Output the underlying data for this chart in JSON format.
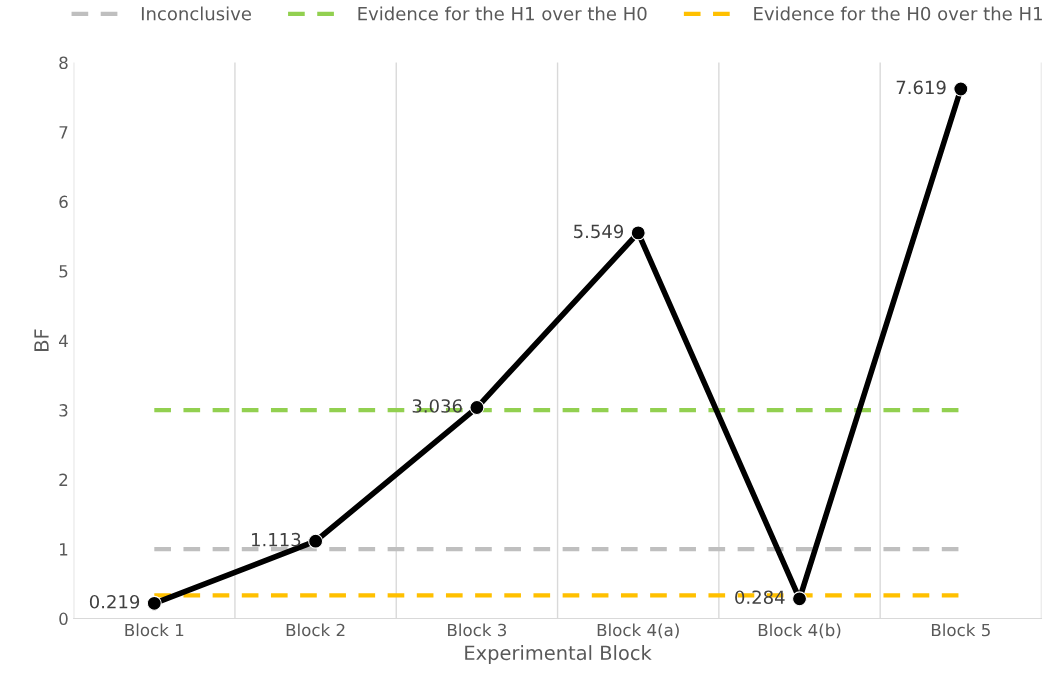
{
  "chart_data": {
    "type": "line",
    "xlabel": "Experimental Block",
    "ylabel": "BF",
    "categories": [
      "Block 1",
      "Block 2",
      "Block 3",
      "Block 4(a)",
      "Block 4(b)",
      "Block 5"
    ],
    "series": [
      {
        "color": "#000000",
        "values": [
          0.219,
          1.113,
          3.036,
          5.549,
          0.284,
          7.619
        ]
      }
    ],
    "marker": "circle",
    "line_style": "solid",
    "data_labels": true,
    "ylim": [
      0,
      8
    ],
    "yticks": [
      0,
      1,
      2,
      3,
      4,
      5,
      6,
      7,
      8
    ],
    "grid": "x",
    "legend": "top",
    "ref_lines": [
      {
        "axis": "y",
        "value": 1,
        "label": "Inconclusive",
        "color": "#bfbfbf",
        "line_style": "dashed"
      },
      {
        "axis": "y",
        "value": 3,
        "label": "Evidence for the H1 over the H0",
        "color": "#92d050",
        "line_style": "dashed"
      },
      {
        "axis": "y",
        "value": 0.333,
        "label": "Evidence for the H0 over the H1",
        "color": "#ffc000",
        "line_style": "dashed"
      }
    ]
  }
}
